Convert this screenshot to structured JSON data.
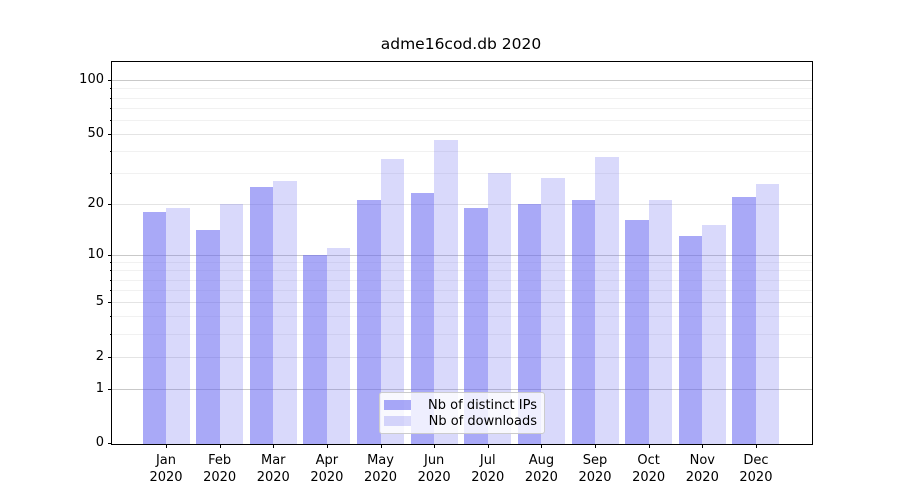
{
  "chart_data": {
    "type": "bar",
    "title": "adme16cod.db 2020",
    "x_months": [
      "Jan",
      "Feb",
      "Mar",
      "Apr",
      "May",
      "Jun",
      "Jul",
      "Aug",
      "Sep",
      "Oct",
      "Nov",
      "Dec"
    ],
    "x_year": "2020",
    "categories": [
      "Jan 2020",
      "Feb 2020",
      "Mar 2020",
      "Apr 2020",
      "May 2020",
      "Jun 2020",
      "Jul 2020",
      "Aug 2020",
      "Sep 2020",
      "Oct 2020",
      "Nov 2020",
      "Dec 2020"
    ],
    "series": [
      {
        "name": "Nb of distinct IPs",
        "values": [
          18,
          14,
          25,
          10,
          21,
          23,
          19,
          20,
          21,
          16,
          13,
          22
        ]
      },
      {
        "name": "Nb of downloads",
        "values": [
          19,
          20,
          27,
          11,
          36,
          46,
          30,
          28,
          37,
          21,
          15,
          26
        ]
      }
    ],
    "yscale": "log10(1+v)",
    "ylabel": "",
    "xlabel": "",
    "y_tick_labels": [
      0,
      1,
      2,
      5,
      10,
      20,
      50,
      100
    ],
    "y_major_gridlines": [
      1,
      10,
      100
    ],
    "y_labeled_minor_gridlines": [
      2,
      5,
      20,
      50
    ],
    "y_minor_gridlines": [
      3,
      4,
      6,
      7,
      8,
      9,
      30,
      40,
      60,
      70,
      80,
      90
    ],
    "ylim": [
      0,
      126
    ],
    "grid": true,
    "legend_position": "lower center"
  },
  "colors": {
    "bar_ips": "rgba(98,98,240,0.55)",
    "bar_downloads": "rgba(98,98,240,0.24)",
    "grid_major": "#c9c9c9",
    "grid_labeled_minor": "#e4e4e4",
    "grid_minor": "#f1f1f1",
    "axis": "#000000",
    "legend_border": "#cccccc",
    "legend_bg": "rgba(255,255,255,0.8)"
  }
}
